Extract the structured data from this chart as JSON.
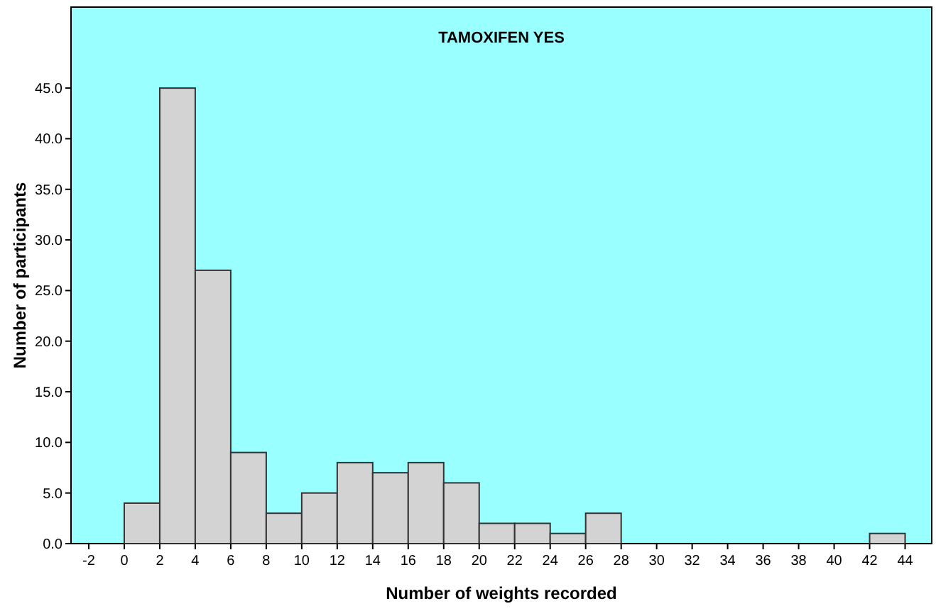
{
  "chart_data": {
    "type": "histogram",
    "title": "TAMOXIFEN YES",
    "xlabel": "Number of weights recorded",
    "ylabel": "Number of participants",
    "bins": [
      0,
      2,
      4,
      6,
      8,
      10,
      12,
      14,
      16,
      18,
      20,
      22,
      24,
      26,
      28,
      30,
      32,
      34,
      36,
      38,
      40,
      42,
      44
    ],
    "values": [
      4,
      45,
      27,
      9,
      3,
      5,
      8,
      7,
      8,
      6,
      2,
      2,
      1,
      3,
      0,
      0,
      0,
      0,
      0,
      0,
      0,
      1
    ],
    "color": "#d3d3d3",
    "xlim": [
      -3,
      45.5
    ],
    "xticks": [
      -2,
      0,
      2,
      4,
      6,
      8,
      10,
      12,
      14,
      16,
      18,
      20,
      22,
      24,
      26,
      28,
      30,
      32,
      34,
      36,
      38,
      40,
      42,
      44
    ],
    "ylim": [
      0,
      53
    ],
    "yticks": [
      {
        "value": 0,
        "label": "0.0"
      },
      {
        "value": 5,
        "label": "5.0"
      },
      {
        "value": 10,
        "label": "10.0"
      },
      {
        "value": 15,
        "label": "15.0"
      },
      {
        "value": 20,
        "label": "20.0"
      },
      {
        "value": 25,
        "label": "25.0"
      },
      {
        "value": 30,
        "label": "30.0"
      },
      {
        "value": 35,
        "label": "35.0"
      },
      {
        "value": 40,
        "label": "40.0"
      },
      {
        "value": 45,
        "label": "45.0"
      }
    ],
    "grid": false
  }
}
